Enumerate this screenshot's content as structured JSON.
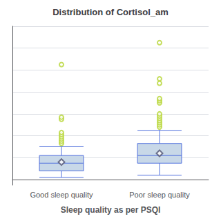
{
  "chart_data": {
    "type": "box",
    "title": "Distribution of Cortisol_am",
    "xlabel": "Sleep quality as per PSQI",
    "categories": [
      "Good sleep quality",
      "Poor sleep quality"
    ],
    "boxes": [
      {
        "median": 0.15,
        "q1": 0.08,
        "q3": 0.22,
        "whisker_low": 0.02,
        "whisker_high": 0.3,
        "mean": 0.16,
        "outliers": [
          0.33,
          0.35,
          0.37,
          0.39,
          0.41,
          0.43,
          0.55,
          0.57,
          1.05
        ]
      },
      {
        "median": 0.22,
        "q1": 0.15,
        "q3": 0.33,
        "whisker_low": 0.04,
        "whisker_high": 0.45,
        "mean": 0.24,
        "outliers": [
          0.48,
          0.5,
          0.52,
          0.54,
          0.56,
          0.58,
          0.6,
          0.7,
          0.72,
          0.74,
          0.88,
          0.92,
          1.25
        ]
      }
    ],
    "color": "#c8d8e8",
    "ylim": [
      -0.05,
      1.4
    ],
    "yticks": [
      0,
      0.2,
      0.4,
      0.6,
      0.8,
      1,
      1.2,
      1.4
    ],
    "grid": true,
    "tick_labels": "x"
  }
}
